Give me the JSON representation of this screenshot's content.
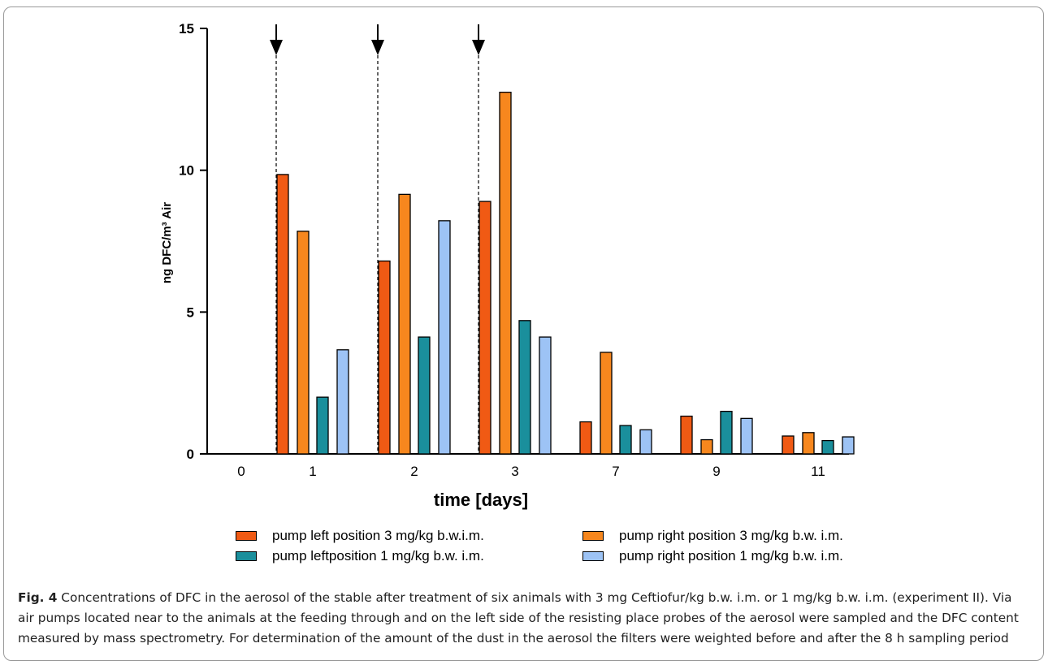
{
  "chart_data": {
    "type": "bar",
    "xlabel": "time [days]",
    "ylabel": "ng DFC/m³ Air",
    "ylim": [
      0,
      15
    ],
    "yticks": [
      0,
      5,
      10,
      15
    ],
    "categories": [
      "0",
      "1",
      "2",
      "3",
      "7",
      "9",
      "11"
    ],
    "markers": [
      "arrow and dashed line before day 1",
      "arrow and dashed line before day 2",
      "arrow and dashed line before day 3"
    ],
    "series": [
      {
        "name": "pump left position 3 mg/kg b.w.i.m.",
        "color": "#f05a14",
        "values": [
          null,
          9.85,
          6.8,
          8.9,
          1.13,
          1.33,
          0.63
        ]
      },
      {
        "name": "pump right position 3 mg/kg b.w. i.m.",
        "color": "#f7871e",
        "values": [
          null,
          7.85,
          9.15,
          12.75,
          3.58,
          0.5,
          0.75
        ]
      },
      {
        "name": "pump leftposition 1 mg/kg b.w. i.m.",
        "color": "#1a8f9c",
        "values": [
          null,
          2.0,
          4.12,
          4.7,
          1.0,
          1.5,
          0.47
        ]
      },
      {
        "name": "pump right position 1 mg/kg b.w. i.m.",
        "color": "#9dc3f5",
        "values": [
          null,
          3.67,
          8.22,
          4.12,
          0.85,
          1.25,
          0.6
        ]
      }
    ]
  },
  "caption": {
    "label": "Fig. 4",
    "text": " Concentrations of DFC in the aerosol of the stable after treatment of six animals with 3 mg Ceftiofur/kg b.w. i.m. or 1 mg/kg b.w. i.m. (experiment II). Via air pumps located near to the animals at the feeding through and on the left side of the resisting place probes of the aerosol were sampled and the DFC content measured by mass spectrometry. For determination of the amount of the dust in the aerosol the filters were weighted before and after the 8 h sampling period"
  }
}
